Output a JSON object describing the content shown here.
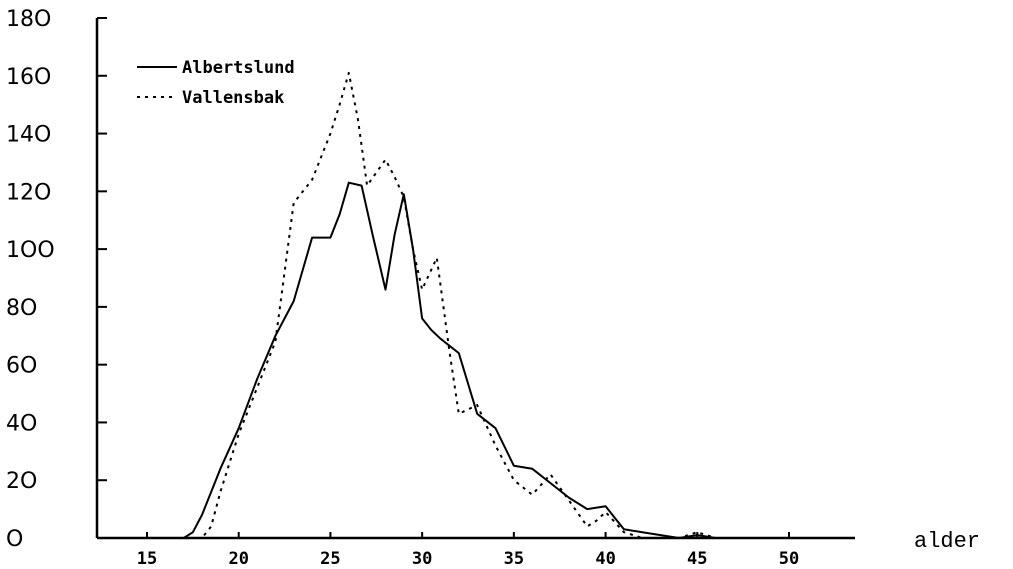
{
  "chart_data": {
    "type": "line",
    "title": "",
    "xlabel": "alder",
    "ylabel": "",
    "xlim": [
      13,
      53
    ],
    "ylim": [
      0,
      180
    ],
    "x_ticks": [
      15,
      20,
      25,
      30,
      35,
      40,
      45,
      50
    ],
    "x_tick_labels": [
      "15",
      "20",
      "25",
      "30",
      "35",
      "40",
      "45",
      "50"
    ],
    "y_ticks": [
      0,
      20,
      40,
      60,
      80,
      100,
      120,
      140,
      160,
      180
    ],
    "y_tick_labels": [
      "O",
      "2O",
      "4O",
      "6O",
      "8O",
      "1OO",
      "12O",
      "14O",
      "16O",
      "18O"
    ],
    "grid": false,
    "legend_position": "top-left",
    "series": [
      {
        "name": "Albertslund",
        "style": "solid",
        "color": "#000000",
        "points": [
          [
            17,
            0
          ],
          [
            17.5,
            2
          ],
          [
            18,
            8
          ],
          [
            19,
            24
          ],
          [
            20,
            38
          ],
          [
            21,
            55
          ],
          [
            22,
            70
          ],
          [
            23,
            82
          ],
          [
            24,
            104
          ],
          [
            25,
            104
          ],
          [
            25.5,
            112
          ],
          [
            26,
            123
          ],
          [
            26.7,
            122
          ],
          [
            27.3,
            105
          ],
          [
            28,
            86
          ],
          [
            28.5,
            105
          ],
          [
            29,
            119
          ],
          [
            29.5,
            100
          ],
          [
            30,
            76
          ],
          [
            30.5,
            72
          ],
          [
            31,
            69
          ],
          [
            32,
            64
          ],
          [
            33,
            43
          ],
          [
            34,
            38
          ],
          [
            35,
            25
          ],
          [
            36,
            24
          ],
          [
            37,
            19
          ],
          [
            38,
            14
          ],
          [
            39,
            10
          ],
          [
            40,
            11
          ],
          [
            40.5,
            7
          ],
          [
            41,
            3
          ],
          [
            42,
            2
          ],
          [
            43,
            1
          ],
          [
            44,
            0
          ],
          [
            45,
            1
          ],
          [
            46,
            0
          ],
          [
            53,
            0
          ]
        ]
      },
      {
        "name": "Vallensbak",
        "style": "dotted",
        "color": "#000000",
        "points": [
          [
            16,
            0
          ],
          [
            18,
            0
          ],
          [
            18.5,
            4
          ],
          [
            19,
            16
          ],
          [
            20,
            36
          ],
          [
            21,
            52
          ],
          [
            22,
            68
          ],
          [
            23,
            116
          ],
          [
            24,
            124
          ],
          [
            25,
            140
          ],
          [
            25.5,
            150
          ],
          [
            26,
            161
          ],
          [
            26.5,
            145
          ],
          [
            27,
            122
          ],
          [
            28,
            131
          ],
          [
            28.5,
            125
          ],
          [
            29,
            118
          ],
          [
            29.5,
            100
          ],
          [
            30,
            86
          ],
          [
            30.8,
            97
          ],
          [
            31.5,
            64
          ],
          [
            32,
            43
          ],
          [
            33,
            46
          ],
          [
            34,
            32
          ],
          [
            35,
            20
          ],
          [
            36,
            15
          ],
          [
            37,
            22
          ],
          [
            38,
            13
          ],
          [
            39,
            4
          ],
          [
            39.5,
            6
          ],
          [
            40,
            9
          ],
          [
            41,
            2
          ],
          [
            42,
            0
          ],
          [
            44,
            0
          ],
          [
            45,
            2
          ],
          [
            46,
            0
          ],
          [
            52,
            0
          ]
        ]
      }
    ]
  }
}
